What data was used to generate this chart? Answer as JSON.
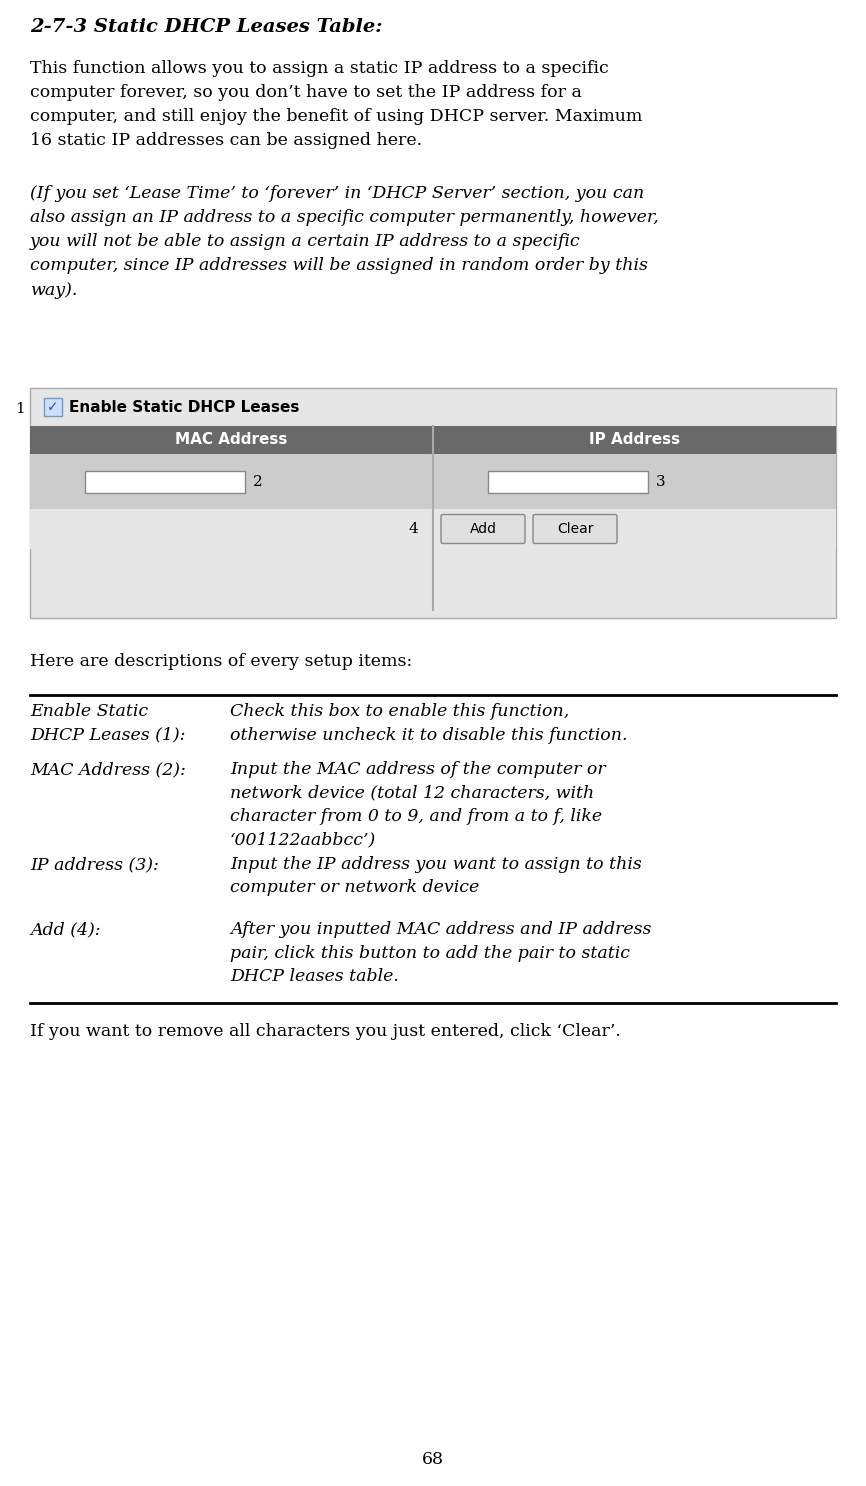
{
  "title": "2-7-3 Static DHCP Leases Table:",
  "para1": "This function allows you to assign a static IP address to a specific\ncomputer forever, so you don’t have to set the IP address for a\ncomputer, and still enjoy the benefit of using DHCP server. Maximum\n16 static IP addresses can be assigned here.",
  "para2": "(If you set ‘Lease Time’ to ‘forever’ in ‘DHCP Server’ section, you can\nalso assign an IP address to a specific computer permanently, however,\nyou will not be able to assign a certain IP address to a specific\ncomputer, since IP addresses will be assigned in random order by this\nway).",
  "para3": "Here are descriptions of every setup items:",
  "para4": "If you want to remove all characters you just entered, click ‘Clear’.",
  "page_num": "68",
  "table_header_bg": "#696969",
  "table_bg": "#e6e6e6",
  "table_row_bg": "#cccccc",
  "checkbox_label": "Enable Static DHCP Leases",
  "col1_header": "MAC Address",
  "col2_header": "IP Address",
  "desc_items": [
    {
      "term": "Enable Static\nDHCP Leases (1):",
      "desc": "Check this box to enable this function,\notherwise uncheck it to disable this function."
    },
    {
      "term": "MAC Address (2):",
      "desc": "Input the MAC address of the computer or\nnetwork device (total 12 characters, with\ncharacter from 0 to 9, and from a to f, like\n‘001122aabbcc’)"
    },
    {
      "term": "IP address (3):",
      "desc": "Input the IP address you want to assign to this\ncomputer or network device"
    },
    {
      "term": "Add (4):",
      "desc": "After you inputted MAC address and IP address\npair, click this button to add the pair to static\nDHCP leases table."
    }
  ],
  "bg_color": "#ffffff",
  "fig_w": 8.66,
  "fig_h": 14.86,
  "dpi": 100
}
